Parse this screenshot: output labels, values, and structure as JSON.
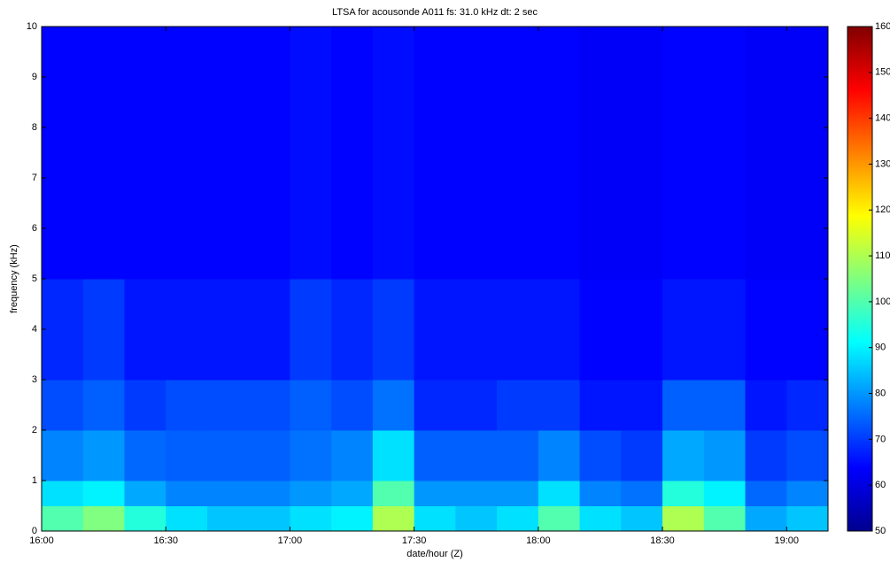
{
  "chart_data": {
    "type": "heatmap",
    "title": "LTSA for acousonde A011     fs: 31.0 kHz     dt: 2 sec",
    "xlabel": "date/hour (Z)",
    "ylabel": "frequency (kHz)",
    "xlim": [
      16,
      19.1667
    ],
    "xticks": [
      {
        "value": 16,
        "label": "16:00"
      },
      {
        "value": 16.5,
        "label": "16:30"
      },
      {
        "value": 17,
        "label": "17:00"
      },
      {
        "value": 17.5,
        "label": "17:30"
      },
      {
        "value": 18,
        "label": "18:00"
      },
      {
        "value": 18.5,
        "label": "18:30"
      },
      {
        "value": 19,
        "label": "19:00"
      }
    ],
    "ylim": [
      0,
      10
    ],
    "yticks": [
      0,
      1,
      2,
      3,
      4,
      5,
      6,
      7,
      8,
      9,
      10
    ],
    "clim": [
      50,
      160
    ],
    "cticks": [
      50,
      60,
      70,
      80,
      90,
      100,
      110,
      120,
      130,
      140,
      150,
      160
    ],
    "colormap": "jet",
    "xbins": [
      16,
      16.1667,
      16.3333,
      16.5,
      16.6667,
      16.8333,
      17,
      17.1667,
      17.3333,
      17.5,
      17.6667,
      17.8333,
      18,
      18.1667,
      18.3333,
      18.5,
      18.6667,
      18.8333,
      19,
      19.1667
    ],
    "ybins": [
      0,
      0.5,
      1,
      2,
      3,
      5,
      10
    ],
    "z": [
      [
        100,
        105,
        95,
        88,
        85,
        85,
        88,
        90,
        110,
        88,
        85,
        88,
        100,
        88,
        85,
        110,
        100,
        82,
        85
      ],
      [
        88,
        90,
        82,
        78,
        78,
        78,
        80,
        82,
        100,
        80,
        80,
        80,
        88,
        78,
        76,
        95,
        90,
        75,
        78
      ],
      [
        78,
        80,
        75,
        74,
        74,
        74,
        76,
        78,
        88,
        74,
        74,
        74,
        78,
        72,
        70,
        82,
        80,
        70,
        72
      ],
      [
        72,
        74,
        70,
        72,
        72,
        72,
        74,
        72,
        76,
        68,
        68,
        70,
        70,
        66,
        66,
        74,
        74,
        66,
        68
      ],
      [
        68,
        70,
        66,
        66,
        66,
        66,
        70,
        68,
        70,
        66,
        66,
        66,
        66,
        64,
        64,
        66,
        66,
        64,
        64
      ],
      [
        64,
        64,
        64,
        64,
        64,
        64,
        65,
        64,
        65,
        64,
        64,
        64,
        64,
        63,
        63,
        64,
        64,
        63,
        63
      ]
    ]
  }
}
